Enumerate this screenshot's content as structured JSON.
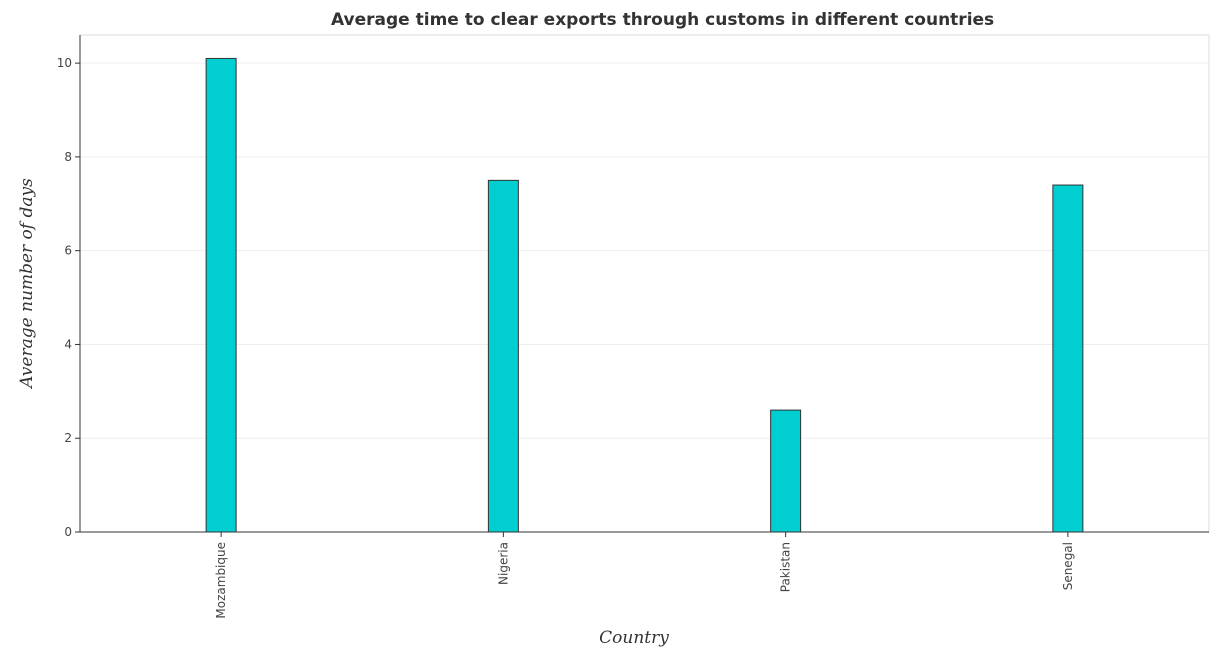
{
  "chart_data": {
    "type": "bar",
    "title": "Average time to clear exports through customs in different countries",
    "xlabel": "Country",
    "ylabel": "Average number of days",
    "categories": [
      "Mozambique",
      "Nigeria",
      "Pakistan",
      "Senegal"
    ],
    "values": [
      10.1,
      7.5,
      2.6,
      7.4
    ],
    "ylim": [
      0,
      10.6
    ],
    "yticks": [
      0,
      2,
      4,
      6,
      8,
      10
    ],
    "bar_color": "#00ced1",
    "grid": true
  }
}
